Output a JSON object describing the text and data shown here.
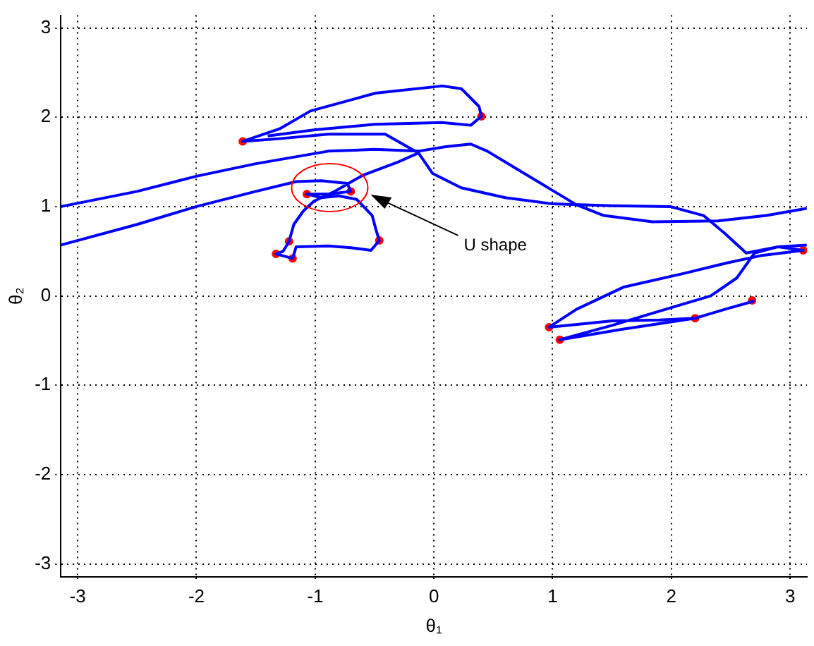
{
  "chart_data": {
    "type": "line",
    "xlabel": "θ₁",
    "ylabel": "θ₂",
    "xlim": [
      -3.1416,
      3.1416
    ],
    "ylim": [
      -3.1416,
      3.1416
    ],
    "xticks": [
      -3,
      -2,
      -1,
      0,
      1,
      2,
      3
    ],
    "yticks": [
      -3,
      -2,
      -1,
      0,
      1,
      2,
      3
    ],
    "grid": true,
    "legend": false,
    "line_style": "solid",
    "annotations": [
      "U shape"
    ],
    "series": [
      {
        "color": "#0000ff",
        "marker": "none",
        "x": [
          -3.14,
          -2.5,
          -2.0,
          -1.5,
          -0.89,
          -0.5,
          -0.13,
          0.1,
          0.31,
          0.45,
          0.7,
          1.0,
          1.2,
          1.43,
          1.84,
          2.39,
          2.8,
          3.14
        ],
        "values": [
          1.0,
          1.17,
          1.34,
          1.48,
          1.62,
          1.64,
          1.62,
          1.67,
          1.7,
          1.62,
          1.42,
          1.18,
          1.02,
          0.9,
          0.83,
          0.84,
          0.9,
          0.98
        ]
      },
      {
        "color": "#0000ff",
        "marker": "none",
        "x": [
          -3.14,
          -2.5,
          -2.0,
          -1.5,
          -1.16,
          -0.95,
          -0.73,
          -0.7,
          -0.89,
          -1.07,
          -0.95,
          -0.8,
          -0.65,
          -0.52,
          -0.49,
          -0.46,
          -0.53,
          -0.7,
          -0.89,
          -1.16,
          -1.19,
          -1.33,
          -1.27,
          -1.22,
          -1.18,
          -1.1,
          -1.01,
          -0.85,
          -0.6,
          -0.3,
          -0.13,
          -0.41,
          -0.89,
          -1.3,
          -1.61,
          -1.3,
          -1.04,
          -0.49,
          0.07,
          0.23,
          0.38,
          0.4,
          0.31,
          0.07,
          -0.5,
          -1.0,
          -1.4
        ],
        "values": [
          0.57,
          0.8,
          1.0,
          1.17,
          1.28,
          1.29,
          1.26,
          1.17,
          1.14,
          1.14,
          1.1,
          1.12,
          1.08,
          0.9,
          0.75,
          0.62,
          0.51,
          0.54,
          0.56,
          0.55,
          0.42,
          0.47,
          0.5,
          0.61,
          0.8,
          0.95,
          1.06,
          1.16,
          1.35,
          1.5,
          1.6,
          1.81,
          1.81,
          1.76,
          1.73,
          1.87,
          2.07,
          2.27,
          2.35,
          2.32,
          2.12,
          2.01,
          1.91,
          1.94,
          1.92,
          1.86,
          1.79
        ]
      },
      {
        "color": "#0000ff",
        "marker": "none",
        "x": [
          -0.13,
          -0.01,
          0.23,
          0.6,
          1.0,
          1.5,
          1.99,
          2.27,
          2.45,
          2.63,
          2.9,
          3.11,
          2.75,
          2.47,
          2.1,
          1.6,
          1.2,
          0.97,
          1.5,
          1.9,
          2.2,
          2.45,
          2.69,
          2.45,
          2.2,
          1.6,
          1.06,
          1.5,
          2.0,
          2.33,
          2.55,
          2.7,
          2.9,
          3.14
        ],
        "values": [
          1.6,
          1.37,
          1.21,
          1.1,
          1.03,
          1.01,
          1.0,
          0.9,
          0.7,
          0.48,
          0.55,
          0.51,
          0.45,
          0.37,
          0.25,
          0.1,
          -0.15,
          -0.35,
          -0.28,
          -0.27,
          -0.25,
          -0.15,
          -0.06,
          -0.15,
          -0.25,
          -0.37,
          -0.49,
          -0.33,
          -0.13,
          0.0,
          0.2,
          0.48,
          0.55,
          0.57
        ]
      },
      {
        "type": "scatter",
        "color": "#ff0000",
        "marker": "circle",
        "x": [
          -1.61,
          0.4,
          -1.07,
          -0.7,
          -1.22,
          -0.46,
          -1.33,
          -1.19,
          3.11,
          2.68,
          2.2,
          0.97,
          1.06
        ],
        "values": [
          1.73,
          2.01,
          1.14,
          1.17,
          0.61,
          0.62,
          0.47,
          0.42,
          0.51,
          -0.05,
          -0.25,
          -0.35,
          -0.49
        ]
      }
    ]
  }
}
